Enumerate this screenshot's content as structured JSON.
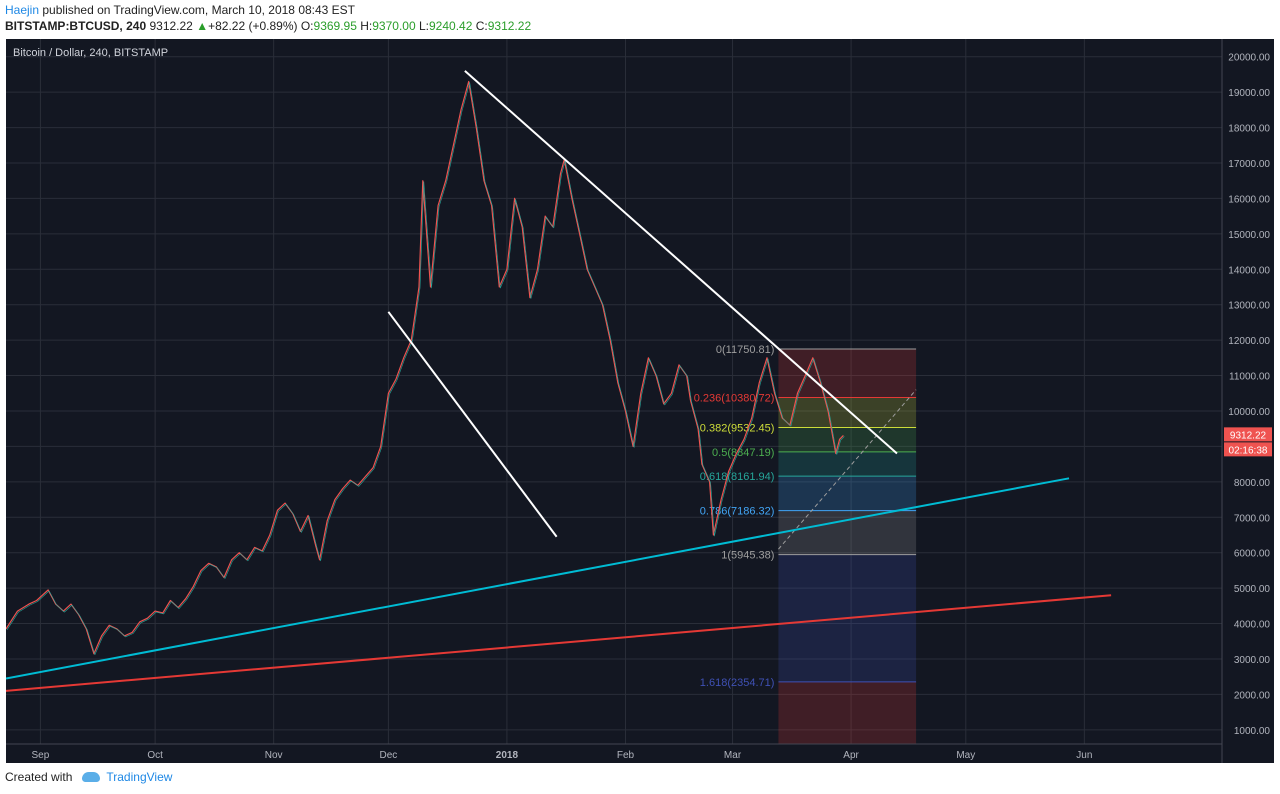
{
  "header": {
    "author": "Haejin",
    "published_text": "published on TradingView.com, March 10, 2018 08:43 EST",
    "symbol": "BITSTAMP:BTCUSD, 240",
    "last": "9312.22",
    "change_arrow": "▲",
    "change": "+82.22 (+0.89%)",
    "o_label": "O:",
    "o_value": "9369.95",
    "h_label": "H:",
    "h_value": "9370.00",
    "l_label": "L:",
    "l_value": "9240.42",
    "c_label": "C:",
    "c_value": "9312.22"
  },
  "footer": {
    "created_with": "Created with",
    "brand": "TradingView"
  },
  "chart_data": {
    "type": "line",
    "title": "Bitcoin / Dollar, 240, BITSTAMP",
    "xlabel": "",
    "ylabel": "",
    "ylim": [
      600,
      20500
    ],
    "grid": true,
    "y_ticks": [
      "1000.00",
      "2000.00",
      "3000.00",
      "4000.00",
      "5000.00",
      "6000.00",
      "7000.00",
      "8000.00",
      "9000.00",
      "10000.00",
      "11000.00",
      "12000.00",
      "13000.00",
      "14000.00",
      "15000.00",
      "16000.00",
      "17000.00",
      "18000.00",
      "19000.00",
      "20000.00"
    ],
    "x_ticks": [
      {
        "label": "Sep",
        "day": 0
      },
      {
        "label": "Oct",
        "day": 30
      },
      {
        "label": "Nov",
        "day": 61
      },
      {
        "label": "Dec",
        "day": 91
      },
      {
        "label": "2018",
        "day": 122
      },
      {
        "label": "Feb",
        "day": 153
      },
      {
        "label": "Mar",
        "day": 181
      },
      {
        "label": "Apr",
        "day": 212
      },
      {
        "label": "May",
        "day": 242
      },
      {
        "label": "Jun",
        "day": 273
      }
    ],
    "x_range": [
      -9,
      309
    ],
    "price_label": "9312.22",
    "countdown_label": "02:16:38",
    "series": [
      {
        "values": [
          [
            -9,
            3850
          ],
          [
            -6,
            4350
          ],
          [
            -3,
            4550
          ],
          [
            -1,
            4650
          ],
          [
            2,
            4950
          ],
          [
            4,
            4550
          ],
          [
            6,
            4350
          ],
          [
            8,
            4550
          ],
          [
            10,
            4250
          ],
          [
            12,
            3850
          ],
          [
            14,
            3150
          ],
          [
            16,
            3650
          ],
          [
            18,
            3950
          ],
          [
            20,
            3850
          ],
          [
            22,
            3650
          ],
          [
            24,
            3750
          ],
          [
            26,
            4050
          ],
          [
            28,
            4150
          ],
          [
            30,
            4350
          ],
          [
            32,
            4300
          ],
          [
            34,
            4650
          ],
          [
            36,
            4450
          ],
          [
            38,
            4700
          ],
          [
            40,
            5050
          ],
          [
            42,
            5500
          ],
          [
            44,
            5700
          ],
          [
            46,
            5600
          ],
          [
            48,
            5300
          ],
          [
            50,
            5800
          ],
          [
            52,
            6000
          ],
          [
            54,
            5800
          ],
          [
            56,
            6150
          ],
          [
            58,
            6050
          ],
          [
            60,
            6500
          ],
          [
            62,
            7200
          ],
          [
            64,
            7400
          ],
          [
            66,
            7100
          ],
          [
            68,
            6600
          ],
          [
            70,
            7050
          ],
          [
            72,
            6200
          ],
          [
            73,
            5800
          ],
          [
            75,
            6900
          ],
          [
            77,
            7500
          ],
          [
            79,
            7800
          ],
          [
            81,
            8050
          ],
          [
            83,
            7900
          ],
          [
            85,
            8150
          ],
          [
            87,
            8400
          ],
          [
            89,
            9000
          ],
          [
            91,
            10500
          ],
          [
            93,
            10900
          ],
          [
            95,
            11500
          ],
          [
            97,
            12000
          ],
          [
            99,
            13500
          ],
          [
            100,
            16500
          ],
          [
            102,
            13500
          ],
          [
            104,
            15800
          ],
          [
            106,
            16500
          ],
          [
            108,
            17500
          ],
          [
            110,
            18500
          ],
          [
            112,
            19300
          ],
          [
            114,
            18000
          ],
          [
            116,
            16500
          ],
          [
            118,
            15800
          ],
          [
            120,
            13500
          ],
          [
            122,
            14000
          ],
          [
            124,
            16000
          ],
          [
            126,
            15200
          ],
          [
            128,
            13200
          ],
          [
            130,
            14000
          ],
          [
            132,
            15500
          ],
          [
            134,
            15200
          ],
          [
            136,
            16700
          ],
          [
            137,
            17100
          ],
          [
            139,
            16000
          ],
          [
            141,
            15000
          ],
          [
            143,
            14000
          ],
          [
            145,
            13500
          ],
          [
            147,
            13000
          ],
          [
            149,
            12000
          ],
          [
            151,
            10800
          ],
          [
            153,
            10000
          ],
          [
            155,
            9000
          ],
          [
            157,
            10500
          ],
          [
            159,
            11500
          ],
          [
            161,
            11000
          ],
          [
            163,
            10200
          ],
          [
            165,
            10500
          ],
          [
            167,
            11300
          ],
          [
            169,
            11000
          ],
          [
            170,
            10300
          ],
          [
            172,
            9500
          ],
          [
            173,
            8500
          ],
          [
            175,
            8000
          ],
          [
            176,
            6500
          ],
          [
            178,
            7500
          ],
          [
            180,
            8300
          ],
          [
            182,
            8800
          ],
          [
            184,
            9200
          ],
          [
            186,
            9800
          ],
          [
            188,
            10800
          ],
          [
            190,
            11500
          ],
          [
            192,
            10500
          ],
          [
            194,
            9800
          ],
          [
            196,
            9600
          ],
          [
            198,
            10500
          ],
          [
            200,
            11000
          ],
          [
            202,
            11500
          ],
          [
            204,
            10800
          ],
          [
            206,
            10000
          ],
          [
            208,
            8800
          ],
          [
            209,
            9200
          ],
          [
            210,
            9312
          ]
        ]
      }
    ],
    "trendlines": [
      {
        "points": [
          [
            91,
            12800
          ],
          [
            135,
            6450
          ]
        ],
        "color": "#ffffff"
      },
      {
        "points": [
          [
            111,
            19600
          ],
          [
            224,
            8800
          ]
        ],
        "color": "#ffffff"
      },
      {
        "points": [
          [
            -9,
            2450
          ],
          [
            269,
            8100
          ]
        ],
        "color": "#00bcd4"
      },
      {
        "points": [
          [
            -9,
            2100
          ],
          [
            280,
            4800
          ]
        ],
        "color": "#e53935"
      }
    ],
    "fib": {
      "start_day": 193,
      "end_day": 229,
      "diagonal": [
        [
          193,
          6100
        ],
        [
          229,
          10600
        ]
      ],
      "levels": [
        {
          "label": "0(11750.81)",
          "value": 11750.81,
          "color": "#9e9e9e"
        },
        {
          "label": "0.236(10380.72)",
          "value": 10380.72,
          "color": "#e53935"
        },
        {
          "label": "0.382(9532.45)",
          "value": 9532.45,
          "color": "#cddc39"
        },
        {
          "label": "0.5(8847.19)",
          "value": 8847.19,
          "color": "#4caf50"
        },
        {
          "label": "0.618(8161.94)",
          "value": 8161.94,
          "color": "#26a69a"
        },
        {
          "label": "0.786(7186.32)",
          "value": 7186.32,
          "color": "#42a5f5"
        },
        {
          "label": "1(5945.38)",
          "value": 5945.38,
          "color": "#9e9e9e"
        },
        {
          "label": "1.618(2354.71)",
          "value": 2354.71,
          "color": "#3f51b5"
        }
      ]
    }
  }
}
